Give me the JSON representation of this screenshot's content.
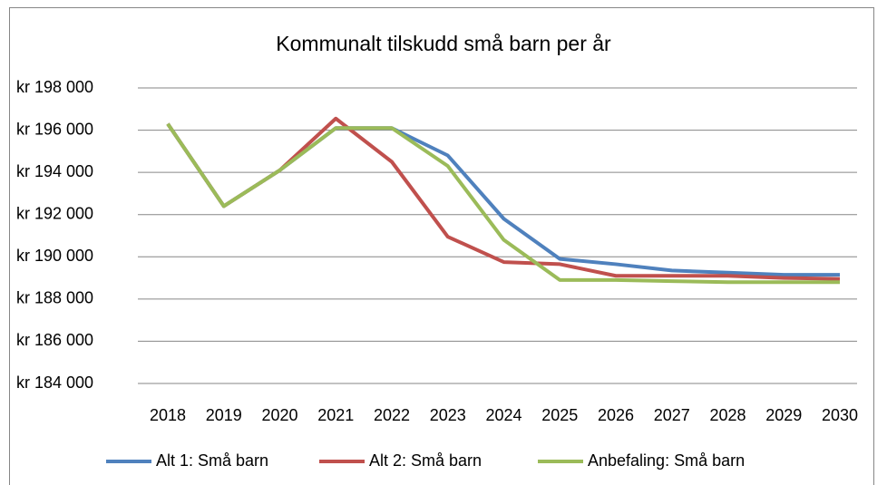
{
  "chart_data": {
    "type": "line",
    "title": "Kommunalt tilskudd små barn per år",
    "categories": [
      "2018",
      "2019",
      "2020",
      "2021",
      "2022",
      "2023",
      "2024",
      "2025",
      "2026",
      "2027",
      "2028",
      "2029",
      "2030"
    ],
    "series": [
      {
        "name": "Alt 1: Små barn",
        "color": "#4f81bd",
        "values": [
          196300,
          192400,
          194100,
          196100,
          196100,
          194800,
          191800,
          189900,
          189650,
          189350,
          189250,
          189150,
          189150
        ]
      },
      {
        "name": "Alt 2: Små barn",
        "color": "#c0504d",
        "values": [
          196300,
          192400,
          194100,
          196550,
          194500,
          190950,
          189750,
          189650,
          189100,
          189100,
          189100,
          189000,
          188950
        ]
      },
      {
        "name": "Anbefaling: Små barn",
        "color": "#9bbb59",
        "values": [
          196300,
          192400,
          194100,
          196100,
          196100,
          194300,
          190800,
          188900,
          188900,
          188850,
          188800,
          188800,
          188800
        ]
      }
    ],
    "ylim": [
      184000,
      198000
    ],
    "yticks": [
      {
        "value": 184000,
        "label": "kr 184 000"
      },
      {
        "value": 186000,
        "label": "kr 186 000"
      },
      {
        "value": 188000,
        "label": "kr 188 000"
      },
      {
        "value": 190000,
        "label": "kr 190 000"
      },
      {
        "value": 192000,
        "label": "kr 192 000"
      },
      {
        "value": 194000,
        "label": "kr 194 000"
      },
      {
        "value": 196000,
        "label": "kr 196 000"
      },
      {
        "value": 198000,
        "label": "kr 198 000"
      }
    ],
    "grid": true,
    "legend": "bottom"
  }
}
